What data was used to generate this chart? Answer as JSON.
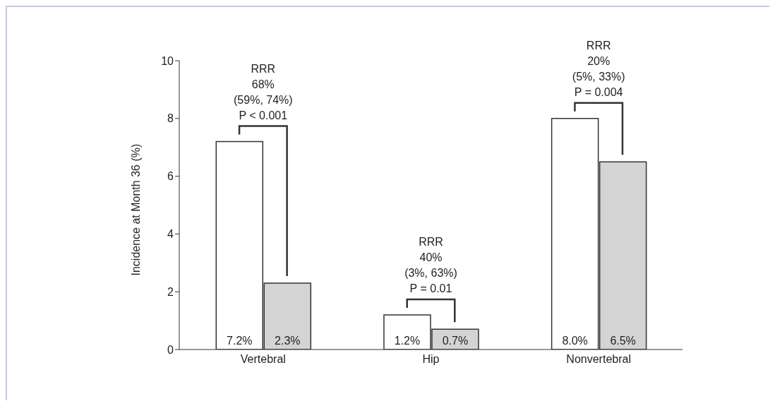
{
  "chart_data": {
    "type": "bar",
    "ylabel": "Incidence at Month 36 (%)",
    "categories": [
      "Vertebral",
      "Hip",
      "Nonvertebral"
    ],
    "series": [
      {
        "color": "#ffffff",
        "values": [
          7.2,
          1.2,
          8.0
        ],
        "value_labels": [
          "7.2%",
          "1.2%",
          "8.0%"
        ]
      },
      {
        "color": "#d4d4d4",
        "values": [
          2.3,
          0.7,
          6.5
        ],
        "value_labels": [
          "2.3%",
          "0.7%",
          "6.5%"
        ]
      }
    ],
    "ylim": [
      0,
      10
    ],
    "yticks": [
      0,
      2,
      4,
      6,
      8,
      10
    ],
    "grid": false,
    "legend": false,
    "annotations": [
      "RRR\n68%\n(59%, 74%)\nP < 0.001",
      "RRR\n40%\n(3%, 63%)\nP = 0.01",
      "RRR\n20%\n(5%, 33%)\nP = 0.004"
    ]
  }
}
